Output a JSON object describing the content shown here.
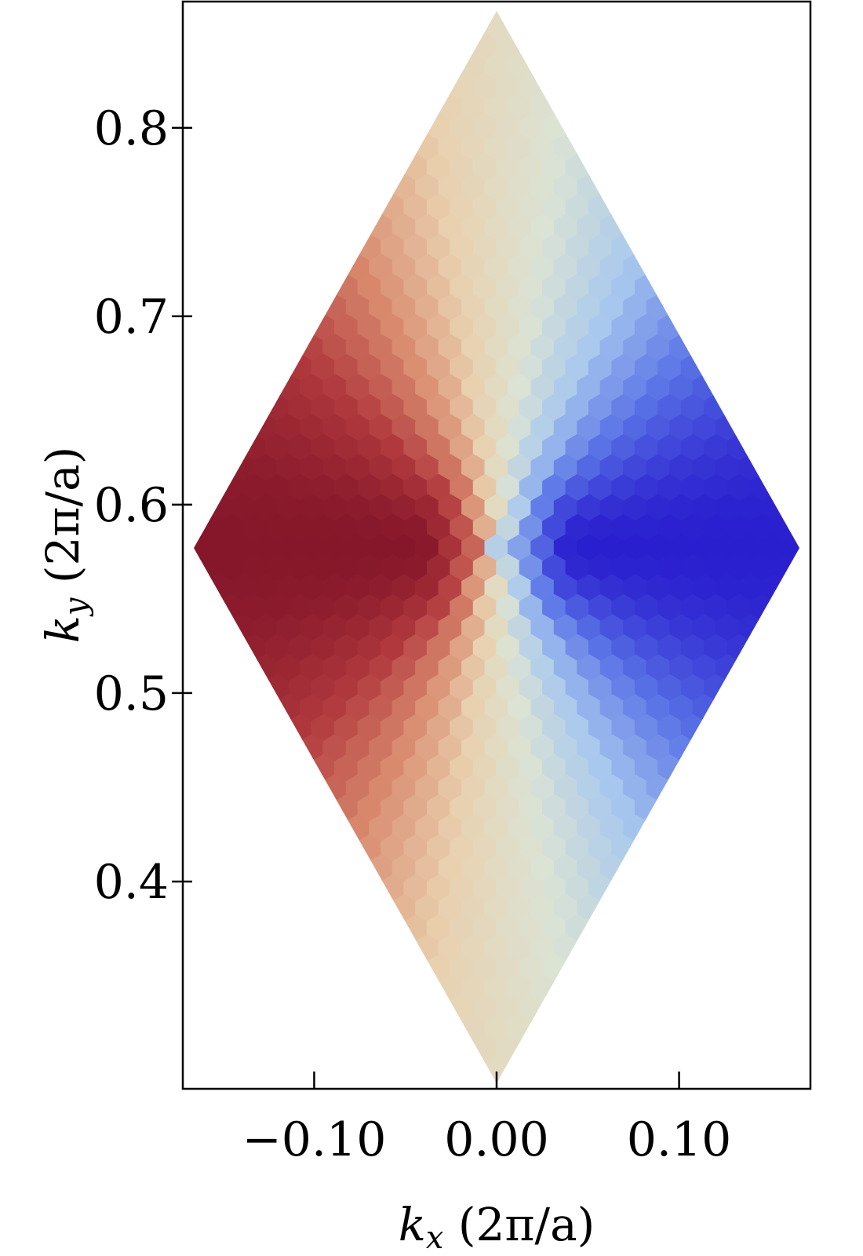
{
  "chart_data": {
    "type": "heatmap",
    "title": "",
    "xlabel": {
      "var": "k",
      "sub": "x",
      "unit": " (2π/a)"
    },
    "ylabel": {
      "var": "k",
      "sub": "y",
      "unit": " (2π/a)"
    },
    "xlim": [
      -0.172,
      0.172
    ],
    "ylim": [
      0.29,
      0.867
    ],
    "xticks": [
      {
        "value": -0.1,
        "label": "−0.10"
      },
      {
        "value": 0.0,
        "label": "0.00"
      },
      {
        "value": 0.1,
        "label": "0.10"
      }
    ],
    "yticks": [
      {
        "value": 0.4,
        "label": "0.4"
      },
      {
        "value": 0.5,
        "label": "0.5"
      },
      {
        "value": 0.6,
        "label": "0.6"
      },
      {
        "value": 0.7,
        "label": "0.7"
      },
      {
        "value": 0.8,
        "label": "0.8"
      }
    ],
    "region": {
      "shape": "rhombus",
      "vertices": [
        {
          "kx": 0.0,
          "ky": 0.862
        },
        {
          "kx": 0.166,
          "ky": 0.577
        },
        {
          "kx": 0.0,
          "ky": 0.293
        },
        {
          "kx": -0.166,
          "ky": 0.577
        }
      ],
      "center": {
        "kx": 0.0,
        "ky": 0.577
      }
    },
    "colormap": {
      "name": "coolwarm (reversed)",
      "stops": [
        "#2a1fcf",
        "#5a74e6",
        "#a8c8ee",
        "#dbe3d4",
        "#e9d0ae",
        "#d98a6e",
        "#b23a3e",
        "#86172a"
      ]
    },
    "grid": false,
    "legend": "none"
  }
}
